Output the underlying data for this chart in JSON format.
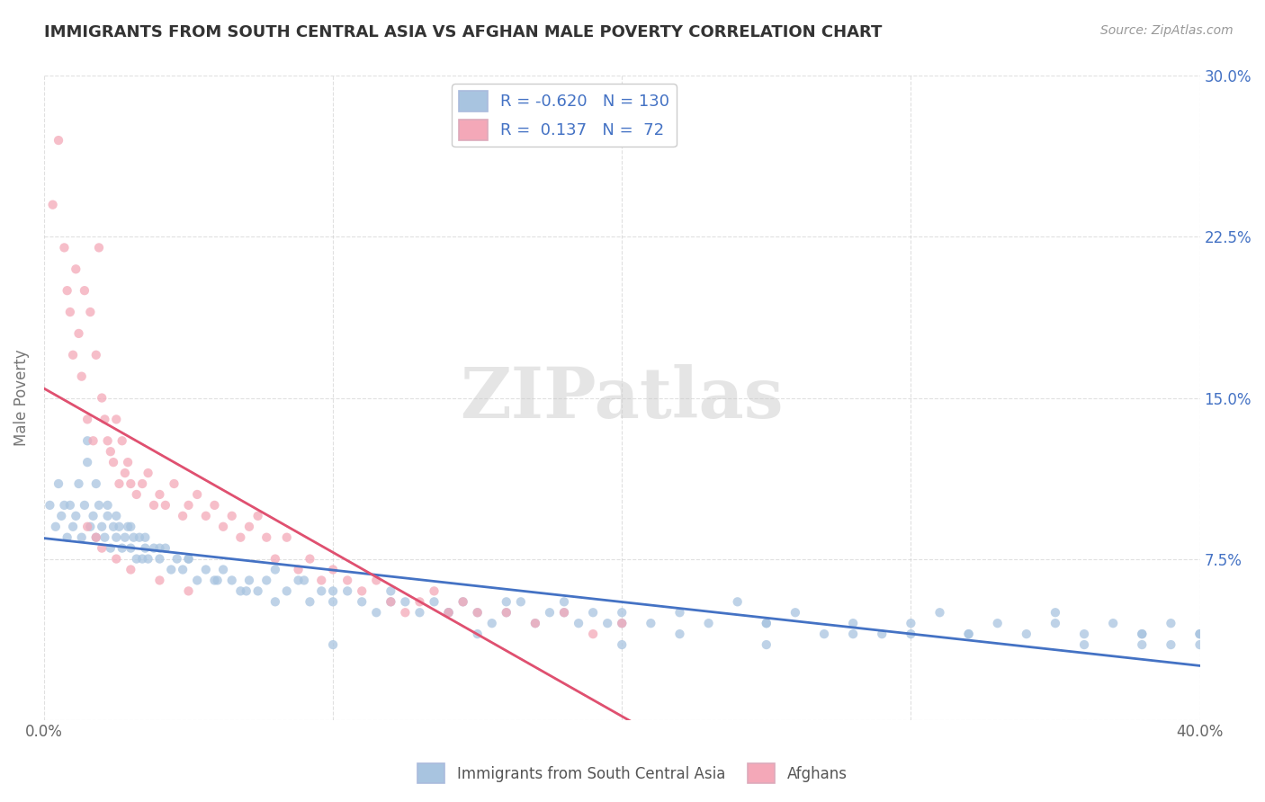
{
  "title": "IMMIGRANTS FROM SOUTH CENTRAL ASIA VS AFGHAN MALE POVERTY CORRELATION CHART",
  "source": "Source: ZipAtlas.com",
  "ylabel": "Male Poverty",
  "xlim": [
    0.0,
    0.4
  ],
  "ylim": [
    0.0,
    0.3
  ],
  "blue_color": "#a8c4e0",
  "pink_color": "#f4a8b8",
  "blue_line_color": "#4472c4",
  "pink_line_color": "#e05070",
  "pink_trend_color": "#cccccc",
  "grid_color": "#cccccc",
  "watermark": "ZIPatlas",
  "r1": -0.62,
  "n1": 130,
  "r2": 0.137,
  "n2": 72,
  "blue_scatter_x": [
    0.002,
    0.004,
    0.005,
    0.006,
    0.007,
    0.008,
    0.009,
    0.01,
    0.011,
    0.012,
    0.013,
    0.014,
    0.015,
    0.016,
    0.017,
    0.018,
    0.019,
    0.02,
    0.021,
    0.022,
    0.023,
    0.024,
    0.025,
    0.026,
    0.027,
    0.028,
    0.029,
    0.03,
    0.031,
    0.032,
    0.033,
    0.034,
    0.035,
    0.036,
    0.038,
    0.04,
    0.042,
    0.044,
    0.046,
    0.048,
    0.05,
    0.053,
    0.056,
    0.059,
    0.062,
    0.065,
    0.068,
    0.071,
    0.074,
    0.077,
    0.08,
    0.084,
    0.088,
    0.092,
    0.096,
    0.1,
    0.105,
    0.11,
    0.115,
    0.12,
    0.125,
    0.13,
    0.135,
    0.14,
    0.145,
    0.15,
    0.155,
    0.16,
    0.165,
    0.17,
    0.175,
    0.18,
    0.185,
    0.19,
    0.195,
    0.2,
    0.21,
    0.22,
    0.23,
    0.24,
    0.25,
    0.26,
    0.27,
    0.28,
    0.29,
    0.3,
    0.31,
    0.32,
    0.33,
    0.34,
    0.35,
    0.36,
    0.37,
    0.38,
    0.39,
    0.4,
    0.015,
    0.018,
    0.022,
    0.025,
    0.03,
    0.035,
    0.04,
    0.05,
    0.06,
    0.07,
    0.08,
    0.09,
    0.1,
    0.12,
    0.14,
    0.16,
    0.18,
    0.2,
    0.22,
    0.25,
    0.28,
    0.32,
    0.36,
    0.38,
    0.39,
    0.4,
    0.4,
    0.38,
    0.35,
    0.3,
    0.25,
    0.2,
    0.15,
    0.1
  ],
  "blue_scatter_y": [
    0.1,
    0.09,
    0.11,
    0.095,
    0.1,
    0.085,
    0.1,
    0.09,
    0.095,
    0.11,
    0.085,
    0.1,
    0.12,
    0.09,
    0.095,
    0.085,
    0.1,
    0.09,
    0.085,
    0.095,
    0.08,
    0.09,
    0.085,
    0.09,
    0.08,
    0.085,
    0.09,
    0.08,
    0.085,
    0.075,
    0.085,
    0.075,
    0.08,
    0.075,
    0.08,
    0.075,
    0.08,
    0.07,
    0.075,
    0.07,
    0.075,
    0.065,
    0.07,
    0.065,
    0.07,
    0.065,
    0.06,
    0.065,
    0.06,
    0.065,
    0.055,
    0.06,
    0.065,
    0.055,
    0.06,
    0.055,
    0.06,
    0.055,
    0.05,
    0.06,
    0.055,
    0.05,
    0.055,
    0.05,
    0.055,
    0.05,
    0.045,
    0.05,
    0.055,
    0.045,
    0.05,
    0.055,
    0.045,
    0.05,
    0.045,
    0.05,
    0.045,
    0.05,
    0.045,
    0.055,
    0.045,
    0.05,
    0.04,
    0.045,
    0.04,
    0.045,
    0.05,
    0.04,
    0.045,
    0.04,
    0.05,
    0.04,
    0.045,
    0.04,
    0.035,
    0.04,
    0.13,
    0.11,
    0.1,
    0.095,
    0.09,
    0.085,
    0.08,
    0.075,
    0.065,
    0.06,
    0.07,
    0.065,
    0.06,
    0.055,
    0.05,
    0.055,
    0.05,
    0.045,
    0.04,
    0.045,
    0.04,
    0.04,
    0.035,
    0.04,
    0.045,
    0.035,
    0.04,
    0.035,
    0.045,
    0.04,
    0.035,
    0.035,
    0.04,
    0.035
  ],
  "pink_scatter_x": [
    0.003,
    0.005,
    0.007,
    0.008,
    0.009,
    0.01,
    0.011,
    0.012,
    0.013,
    0.014,
    0.015,
    0.016,
    0.017,
    0.018,
    0.019,
    0.02,
    0.021,
    0.022,
    0.023,
    0.024,
    0.025,
    0.026,
    0.027,
    0.028,
    0.029,
    0.03,
    0.032,
    0.034,
    0.036,
    0.038,
    0.04,
    0.042,
    0.045,
    0.048,
    0.05,
    0.053,
    0.056,
    0.059,
    0.062,
    0.065,
    0.068,
    0.071,
    0.074,
    0.077,
    0.08,
    0.084,
    0.088,
    0.092,
    0.096,
    0.1,
    0.105,
    0.11,
    0.115,
    0.12,
    0.125,
    0.13,
    0.135,
    0.14,
    0.145,
    0.15,
    0.16,
    0.17,
    0.18,
    0.19,
    0.2,
    0.015,
    0.018,
    0.02,
    0.025,
    0.03,
    0.04,
    0.05
  ],
  "pink_scatter_y": [
    0.24,
    0.27,
    0.22,
    0.2,
    0.19,
    0.17,
    0.21,
    0.18,
    0.16,
    0.2,
    0.14,
    0.19,
    0.13,
    0.17,
    0.22,
    0.15,
    0.14,
    0.13,
    0.125,
    0.12,
    0.14,
    0.11,
    0.13,
    0.115,
    0.12,
    0.11,
    0.105,
    0.11,
    0.115,
    0.1,
    0.105,
    0.1,
    0.11,
    0.095,
    0.1,
    0.105,
    0.095,
    0.1,
    0.09,
    0.095,
    0.085,
    0.09,
    0.095,
    0.085,
    0.075,
    0.085,
    0.07,
    0.075,
    0.065,
    0.07,
    0.065,
    0.06,
    0.065,
    0.055,
    0.05,
    0.055,
    0.06,
    0.05,
    0.055,
    0.05,
    0.05,
    0.045,
    0.05,
    0.04,
    0.045,
    0.09,
    0.085,
    0.08,
    0.075,
    0.07,
    0.065,
    0.06
  ]
}
